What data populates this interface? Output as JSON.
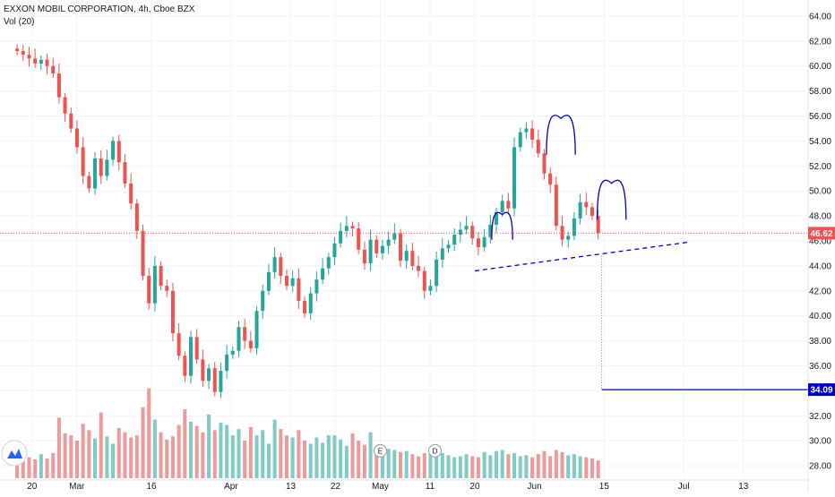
{
  "header": {
    "title": "EXXON MOBIL CORPORATION, 4h, Cboe BZX",
    "indicator": "Vol (20)"
  },
  "colors": {
    "up": "#26a69a",
    "down": "#ef5350",
    "vol_up": "#80cbc4",
    "vol_down": "#ef9a9a",
    "price_line": "#ef5350",
    "drawing": "#0000cc",
    "target_badge": "#0000cc",
    "price_badge": "#ef5350"
  },
  "chart_data": {
    "type": "candlestick",
    "ylim": [
      27.0,
      65.0
    ],
    "y_ticks": [
      "28.00",
      "30.00",
      "32.00",
      "34.00",
      "36.00",
      "38.00",
      "40.00",
      "42.00",
      "44.00",
      "46.00",
      "48.00",
      "50.00",
      "52.00",
      "54.00",
      "56.00",
      "58.00",
      "60.00",
      "62.00",
      "64.00"
    ],
    "x_ticks": [
      {
        "label": "20",
        "day": 0
      },
      {
        "label": "Mar",
        "day": 9
      },
      {
        "label": "16",
        "day": 24
      },
      {
        "label": "Apr",
        "day": 40
      },
      {
        "label": "13",
        "day": 52
      },
      {
        "label": "22",
        "day": 61
      },
      {
        "label": "May",
        "day": 70
      },
      {
        "label": "11",
        "day": 80
      },
      {
        "label": "20",
        "day": 89
      },
      {
        "label": "Jun",
        "day": 101
      },
      {
        "label": "15",
        "day": 115
      },
      {
        "label": "Jul",
        "day": 131
      },
      {
        "label": "13",
        "day": 143
      }
    ],
    "xlim_days": [
      -5,
      156
    ],
    "last_price": "46.62",
    "target_price": "34.09",
    "closes": [
      61.2,
      60.9,
      60.6,
      60.2,
      60.5,
      60.0,
      59.4,
      57.5,
      56.2,
      55.0,
      53.5,
      51.2,
      50.2,
      52.6,
      51.2,
      52.5,
      54.0,
      52.3,
      50.6,
      49.0,
      46.8,
      43.2,
      41.0,
      44.0,
      42.4,
      42.0,
      38.6,
      36.8,
      35.2,
      38.3,
      36.5,
      34.8,
      35.8,
      33.9,
      35.6,
      36.9,
      37.2,
      39.1,
      38.0,
      37.4,
      40.4,
      42.0,
      43.5,
      44.7,
      43.2,
      42.4,
      43.0,
      41.2,
      40.2,
      41.8,
      42.9,
      43.8,
      44.7,
      45.8,
      46.8,
      47.2,
      47.0,
      45.3,
      44.2,
      46.1,
      45.0,
      45.6,
      46.1,
      46.6,
      44.4,
      45.2,
      44.0,
      43.6,
      42.0,
      42.4,
      44.5,
      45.4,
      45.7,
      46.5,
      46.9,
      47.2,
      46.2,
      45.5,
      46.3,
      47.3,
      48.3,
      49.2,
      48.6,
      53.5,
      54.7,
      55.0,
      54.1,
      53.0,
      51.4,
      50.5,
      47.2,
      46.1,
      46.4,
      47.8,
      49.1,
      48.7,
      48.0,
      46.62
    ],
    "volumes": [
      2.5,
      2.2,
      2.0,
      1.8,
      2.3,
      1.9,
      2.4,
      5.8,
      4.3,
      4.1,
      3.6,
      5.2,
      4.6,
      3.8,
      6.3,
      4.0,
      3.3,
      4.8,
      4.4,
      3.9,
      4.1,
      6.8,
      8.6,
      5.6,
      4.4,
      3.7,
      4.0,
      5.1,
      6.6,
      5.4,
      5.0,
      4.4,
      6.1,
      4.6,
      5.3,
      5.1,
      4.1,
      4.7,
      3.6,
      4.9,
      4.1,
      4.6,
      3.3,
      5.6,
      4.7,
      4.1,
      3.9,
      4.6,
      3.6,
      3.3,
      3.9,
      3.4,
      4.1,
      4.1,
      3.7,
      3.1,
      4.3,
      3.6,
      3.2,
      4.4,
      3.0,
      2.9,
      2.8,
      2.7,
      2.5,
      2.6,
      2.3,
      2.1,
      2.4,
      2.3,
      2.5,
      2.4,
      2.2,
      2.0,
      2.1,
      2.3,
      2.1,
      2.0,
      2.5,
      2.2,
      2.6,
      2.7,
      2.3,
      2.4,
      2.1,
      2.2,
      2.0,
      2.3,
      2.6,
      2.1,
      2.7,
      2.5,
      2.2,
      2.3,
      2.1,
      2.0,
      1.9,
      1.7
    ],
    "volume_ylim": [
      0,
      12
    ],
    "events": [
      {
        "label": "E",
        "day": 70,
        "price": 29.2
      },
      {
        "label": "D",
        "day": 81,
        "price": 29.2
      }
    ],
    "annotations": {
      "shoulders": [
        {
          "cx_day": 94.5,
          "top": 48.1,
          "w_days": 4.2,
          "h": 2.0
        },
        {
          "cx_day": 106.3,
          "top": 55.8,
          "w_days": 5.8,
          "h": 2.9
        },
        {
          "cx_day": 116.5,
          "top": 50.6,
          "w_days": 5.8,
          "h": 2.9
        }
      ],
      "neckline": {
        "x1_day": 89.0,
        "y1": 43.6,
        "x2_day": 132.0,
        "y2": 45.9
      },
      "measure": {
        "x_day": 114.5,
        "y_top": 44.8,
        "y_bottom": 34.09,
        "x_end_day": 156
      }
    }
  }
}
